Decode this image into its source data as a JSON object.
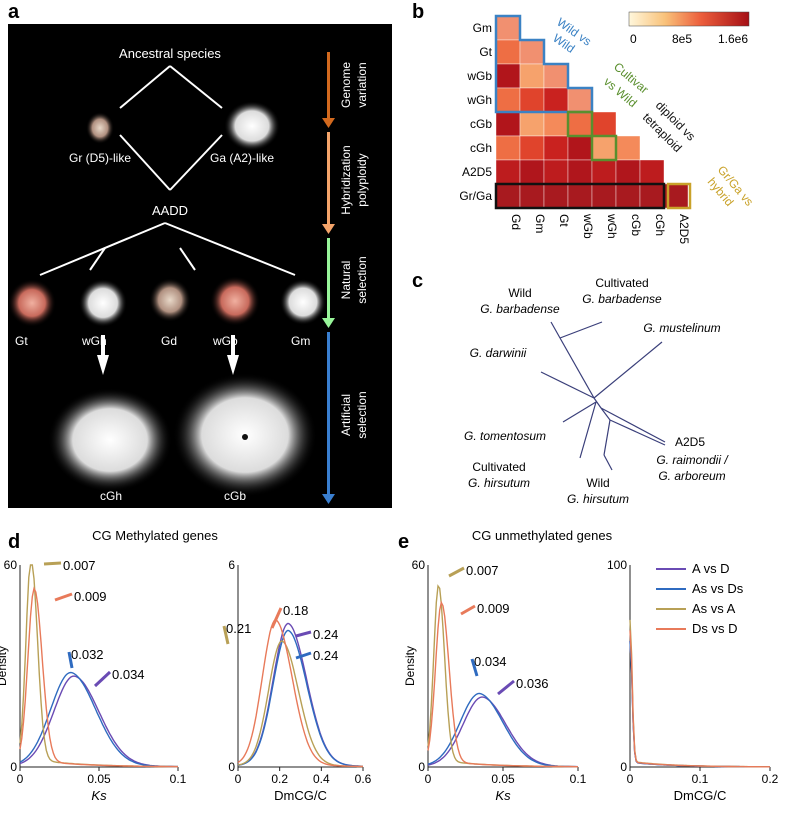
{
  "panel_labels": {
    "a": "a",
    "b": "b",
    "c": "c",
    "d": "d",
    "e": "e"
  },
  "panel_a": {
    "ancestral": "Ancestral species",
    "gr": "Gr (D5)-like",
    "ga": "Ga (A2)-like",
    "aadd": "AADD",
    "species": [
      "Gt",
      "wGh",
      "Gd",
      "wGb",
      "Gm"
    ],
    "domesticated": [
      "cGh",
      "cGb"
    ],
    "stages": [
      {
        "line1": "Genome",
        "line2": "variation",
        "color": "#d2691e"
      },
      {
        "line1": "Hybridization",
        "line2": "polyploidy",
        "color": "#f4a46a"
      },
      {
        "line1": "Natural",
        "line2": "selection",
        "color": "#98f59a"
      },
      {
        "line1": "Artificial",
        "line2": "selection",
        "color": "#3a7fd0"
      }
    ]
  },
  "panel_b": {
    "row_labels": [
      "Gm",
      "Gt",
      "wGb",
      "wGh",
      "cGb",
      "cGh",
      "A2D5",
      "Gr/Ga"
    ],
    "col_labels": [
      "Gd",
      "Gm",
      "Gt",
      "wGb",
      "wGh",
      "cGb",
      "cGh",
      "A2D5"
    ],
    "colorbar": {
      "min": "0",
      "mid": "8e5",
      "max": "1.6e6"
    },
    "annotations": {
      "wild": {
        "line1": "Wild vs",
        "line2": "Wild",
        "color": "#3b82c4"
      },
      "cultivar": {
        "line1": "Cultivar",
        "line2": "vs Wild",
        "color": "#5a8f2e"
      },
      "ploidy": {
        "line1": "diploid vs",
        "line2": "tetraploid",
        "color": "#111111"
      },
      "hybrid": {
        "line1": "Gr/Ga vs",
        "line2": "hybrid",
        "color": "#c9a22a"
      }
    }
  },
  "panel_c": {
    "labels": {
      "wild_gb_1": "Wild",
      "wild_gb_2": "G. barbadense",
      "cult_gb_1": "Cultivated",
      "cult_gb_2": "G. barbadense",
      "musteli": "G. mustelinum",
      "darwinii": "G. darwinii",
      "a2d5": "A2D5",
      "tomentosum": "G. tomentosum",
      "rai_1": "G. raimondii /",
      "rai_2": "G. arboreum",
      "cult_gh_1": "Cultivated",
      "cult_gh_2": "G. hirsutum",
      "wild_gh_1": "Wild",
      "wild_gh_2": "G. hirsutum"
    }
  },
  "panel_d": {
    "title": "CG Methylated genes",
    "ks": {
      "ylabel": "Density",
      "xlabel": "Ks",
      "y_ticks": [
        "0",
        "60"
      ],
      "x_ticks": [
        "0",
        "0.05",
        "0.1"
      ],
      "annotations": [
        "0.007",
        "0.009",
        "0.032",
        "0.034"
      ]
    },
    "dm": {
      "xlabel": "DmCG/C",
      "y_ticks": [
        "0",
        "6"
      ],
      "x_ticks": [
        "0",
        "0.2",
        "0.4",
        "0.6"
      ],
      "annotations": [
        "0.21",
        "0.18",
        "0.24",
        "0.24"
      ]
    }
  },
  "panel_e": {
    "title": "CG unmethylated genes",
    "ks": {
      "ylabel": "Density",
      "xlabel": "Ks",
      "y_ticks": [
        "0",
        "60"
      ],
      "x_ticks": [
        "0",
        "0.05",
        "0.1"
      ],
      "annotations": [
        "0.007",
        "0.009",
        "0.034",
        "0.036"
      ]
    },
    "dm": {
      "xlabel": "DmCG/C",
      "y_ticks": [
        "0",
        "100"
      ],
      "x_ticks": [
        "0",
        "0.1",
        "0.2"
      ]
    }
  },
  "legend": [
    {
      "name": "A vs D",
      "color": "#6a4bb4"
    },
    {
      "name": "As vs Ds",
      "color": "#2f6bc0"
    },
    {
      "name": "As vs A",
      "color": "#b8a056"
    },
    {
      "name": "Ds vs D",
      "color": "#e87a5a"
    }
  ],
  "chart_data": [
    {
      "type": "line",
      "title": "CG Methylated genes",
      "xlabel": "Ks",
      "ylabel": "Density",
      "xlim": [
        0,
        0.1
      ],
      "ylim": [
        0,
        60
      ],
      "series": [
        {
          "name": "A vs D",
          "peak_x": 0.034,
          "peak_y": 26,
          "width": 0.016
        },
        {
          "name": "As vs Ds",
          "peak_x": 0.032,
          "peak_y": 27,
          "width": 0.016
        },
        {
          "name": "As vs A",
          "peak_x": 0.007,
          "peak_y": 60,
          "width": 0.004
        },
        {
          "name": "Ds vs D",
          "peak_x": 0.009,
          "peak_y": 51,
          "width": 0.005
        }
      ]
    },
    {
      "type": "line",
      "xlabel": "DmCG/C",
      "ylim": [
        0,
        6
      ],
      "xlim": [
        0,
        0.6
      ],
      "series": [
        {
          "name": "A vs D",
          "peak_x": 0.24,
          "peak_y": 4.1,
          "width": 0.09
        },
        {
          "name": "As vs Ds",
          "peak_x": 0.24,
          "peak_y": 3.9,
          "width": 0.09
        },
        {
          "name": "As vs A",
          "peak_x": 0.21,
          "peak_y": 3.6,
          "width": 0.08
        },
        {
          "name": "Ds vs D",
          "peak_x": 0.18,
          "peak_y": 4.2,
          "width": 0.08
        }
      ]
    },
    {
      "type": "line",
      "title": "CG unmethylated genes",
      "xlabel": "Ks",
      "ylabel": "Density",
      "xlim": [
        0,
        0.1
      ],
      "ylim": [
        0,
        60
      ],
      "series": [
        {
          "name": "A vs D",
          "peak_x": 0.036,
          "peak_y": 20,
          "width": 0.016
        },
        {
          "name": "As vs Ds",
          "peak_x": 0.034,
          "peak_y": 21,
          "width": 0.016
        },
        {
          "name": "As vs A",
          "peak_x": 0.007,
          "peak_y": 52,
          "width": 0.004
        },
        {
          "name": "Ds vs D",
          "peak_x": 0.009,
          "peak_y": 47,
          "width": 0.005
        }
      ]
    },
    {
      "type": "line",
      "xlabel": "DmCG/C",
      "ylim": [
        0,
        100
      ],
      "xlim": [
        0,
        0.2
      ],
      "series": [
        {
          "name": "A vs D",
          "peak_x": 0,
          "peak_y": 60,
          "width": 0.003
        },
        {
          "name": "As vs Ds",
          "peak_x": 0,
          "peak_y": 60,
          "width": 0.003
        },
        {
          "name": "As vs A",
          "peak_x": 0,
          "peak_y": 70,
          "width": 0.003
        },
        {
          "name": "Ds vs D",
          "peak_x": 0,
          "peak_y": 65,
          "width": 0.003
        }
      ]
    }
  ]
}
